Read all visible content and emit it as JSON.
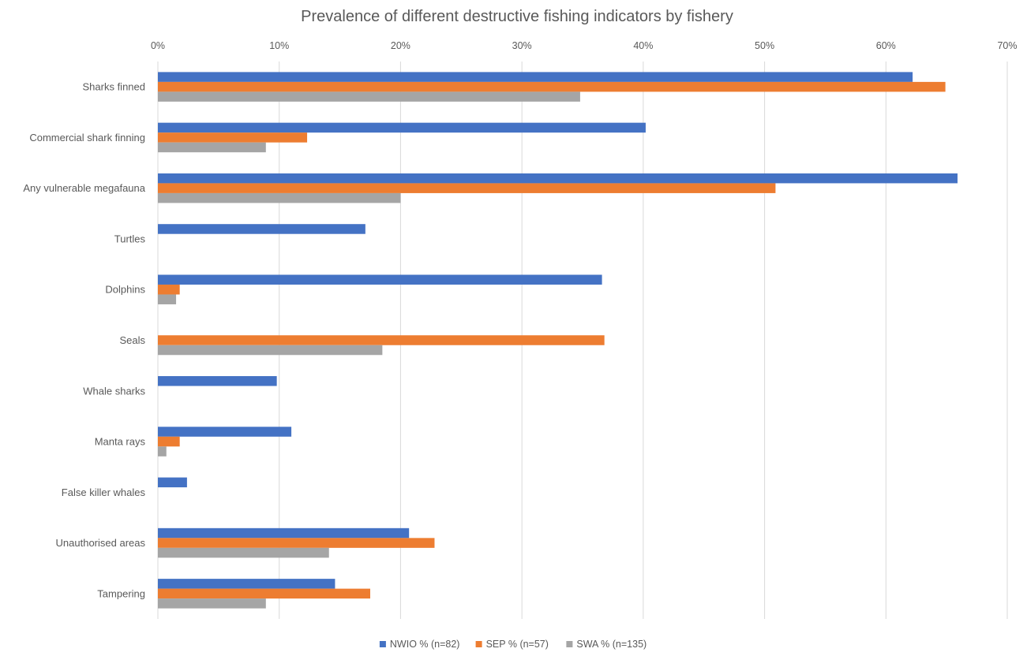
{
  "chart_data": {
    "type": "bar",
    "orientation": "horizontal",
    "title": "Prevalence of different destructive fishing indicators by fishery",
    "xlim": [
      0,
      70
    ],
    "x_ticks": [
      "0%",
      "10%",
      "20%",
      "30%",
      "40%",
      "50%",
      "60%",
      "70%"
    ],
    "x_tick_values": [
      0,
      10,
      20,
      30,
      40,
      50,
      60,
      70
    ],
    "x_axis_position": "top",
    "grid": true,
    "legend_position": "bottom",
    "categories": [
      "Sharks finned",
      "Commercial shark finning",
      "Any vulnerable megafauna",
      "Turtles",
      "Dolphins",
      "Seals",
      "Whale sharks",
      "Manta rays",
      "False killer whales",
      "Unauthorised areas",
      "Tampering"
    ],
    "series": [
      {
        "name": "NWIO % (n=82)",
        "color": "#4472C4",
        "values": [
          62.2,
          40.2,
          65.9,
          17.1,
          36.6,
          0,
          9.8,
          11.0,
          2.4,
          20.7,
          14.6
        ]
      },
      {
        "name": "SEP % (n=57)",
        "color": "#ED7D31",
        "values": [
          64.9,
          12.3,
          50.9,
          0,
          1.8,
          36.8,
          0,
          1.8,
          0,
          22.8,
          17.5
        ]
      },
      {
        "name": "SWA % (n=135)",
        "color": "#A5A5A5",
        "values": [
          34.8,
          8.9,
          20.0,
          0,
          1.5,
          18.5,
          0,
          0.7,
          0,
          14.1,
          8.9
        ]
      }
    ]
  }
}
